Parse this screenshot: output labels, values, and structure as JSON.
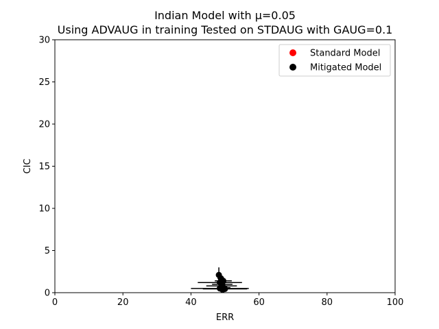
{
  "chart_data": {
    "type": "scatter",
    "title_line1": "Indian Model with μ=0.05",
    "title_line2": "Using ADVAUG in training Tested on STDAUG with GAUG=0.1",
    "xlabel": "ERR",
    "ylabel": "CIC",
    "xlim": [
      0,
      100
    ],
    "ylim": [
      0,
      30
    ],
    "xticks": [
      "0",
      "20",
      "40",
      "60",
      "80",
      "100"
    ],
    "yticks": [
      "0",
      "5",
      "10",
      "15",
      "20",
      "25",
      "30"
    ],
    "grid": false,
    "legend_position": "top-right",
    "series": [
      {
        "name": "Standard Model",
        "color": "#ff0000",
        "points": []
      },
      {
        "name": "Mitigated Model",
        "color": "#000000",
        "points": [
          {
            "x": 48.2,
            "y": 2.1,
            "xerr": 0.6,
            "yerr": 0.9
          },
          {
            "x": 48.8,
            "y": 1.7,
            "xerr": 1.0,
            "yerr": 0.5
          },
          {
            "x": 49.5,
            "y": 1.4,
            "xerr": 2.5,
            "yerr": 0.3
          },
          {
            "x": 48.5,
            "y": 1.2,
            "xerr": 6.5,
            "yerr": 0.2
          },
          {
            "x": 49.2,
            "y": 1.0,
            "xerr": 3.0,
            "yerr": 0.2
          },
          {
            "x": 49.0,
            "y": 0.8,
            "xerr": 4.5,
            "yerr": 0.2
          },
          {
            "x": 49.6,
            "y": 0.6,
            "xerr": 2.0,
            "yerr": 0.2
          },
          {
            "x": 48.5,
            "y": 0.5,
            "xerr": 8.5,
            "yerr": 0.15
          },
          {
            "x": 50.0,
            "y": 0.45,
            "xerr": 6.5,
            "yerr": 0.15
          },
          {
            "x": 49.3,
            "y": 0.35,
            "xerr": 1.5,
            "yerr": 0.15
          }
        ]
      }
    ]
  }
}
